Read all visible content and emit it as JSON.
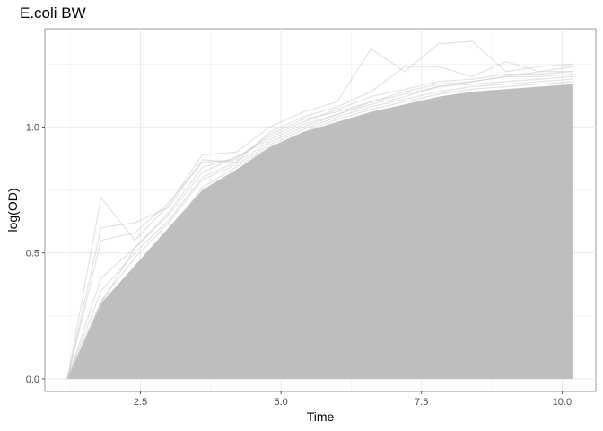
{
  "chart_data": {
    "type": "line",
    "title": "E.coli BW",
    "xlabel": "Time",
    "ylabel": "log(OD)",
    "xlim": [
      0.8,
      10.6
    ],
    "ylim": [
      -0.05,
      1.39
    ],
    "x_ticks": [
      2.5,
      5.0,
      7.5,
      10.0
    ],
    "x_tick_labels": [
      "2.5",
      "5.0",
      "7.5",
      "10.0"
    ],
    "y_ticks": [
      0.0,
      0.5,
      1.0
    ],
    "y_tick_labels": [
      "0.0",
      "0.5",
      "1.0"
    ],
    "grid": true,
    "legend": "none",
    "series_color": "#bebebe",
    "series_note": "many overlapping growth curves; values below are approximate envelope traces",
    "envelope": {
      "x": [
        1.2,
        1.8,
        2.4,
        3.0,
        3.6,
        4.2,
        4.8,
        5.4,
        6.0,
        6.6,
        7.2,
        7.8,
        8.4,
        9.0,
        9.6,
        10.2
      ],
      "upper": [
        0.0,
        0.3,
        0.45,
        0.6,
        0.75,
        0.83,
        0.92,
        0.98,
        1.02,
        1.06,
        1.09,
        1.12,
        1.14,
        1.15,
        1.16,
        1.17
      ],
      "lower": [
        0.0,
        0.0,
        0.0,
        0.0,
        0.0,
        0.0,
        0.0,
        0.0,
        0.0,
        0.0,
        0.0,
        0.0,
        0.0,
        0.0,
        0.0,
        0.0
      ]
    },
    "series": [
      {
        "x": [
          1.2,
          1.8,
          2.4,
          3.0,
          3.6,
          4.2,
          4.8,
          5.4,
          6.0,
          6.6,
          7.2,
          7.8,
          8.4,
          9.0,
          9.6,
          10.2
        ],
        "values": [
          0.0,
          0.72,
          0.55,
          0.69,
          0.89,
          0.9,
          1.0,
          1.06,
          1.1,
          1.31,
          1.22,
          1.33,
          1.34,
          1.22,
          1.24,
          1.25
        ]
      },
      {
        "x": [
          1.2,
          1.8,
          2.4,
          3.0,
          3.6,
          4.2,
          4.8,
          5.4,
          6.0,
          6.6,
          7.2,
          7.8,
          8.4,
          9.0,
          9.6,
          10.2
        ],
        "values": [
          0.0,
          0.6,
          0.62,
          0.68,
          0.87,
          0.86,
          0.98,
          1.04,
          1.08,
          1.14,
          1.24,
          1.24,
          1.2,
          1.26,
          1.22,
          1.22
        ]
      },
      {
        "x": [
          1.2,
          1.8,
          2.4,
          3.0,
          3.6,
          4.2,
          4.8,
          5.4,
          6.0,
          6.6,
          7.2,
          7.8,
          8.4,
          9.0,
          9.6,
          10.2
        ],
        "values": [
          0.0,
          0.4,
          0.52,
          0.65,
          0.82,
          0.88,
          0.96,
          1.02,
          1.07,
          1.12,
          1.15,
          1.18,
          1.19,
          1.21,
          1.21,
          1.22
        ]
      },
      {
        "x": [
          1.2,
          1.8,
          2.4,
          3.0,
          3.6,
          4.2,
          4.8,
          5.4,
          6.0,
          6.6,
          7.2,
          7.8,
          8.4,
          9.0,
          9.6,
          10.2
        ],
        "values": [
          0.0,
          0.35,
          0.5,
          0.63,
          0.8,
          0.86,
          0.94,
          1.0,
          1.05,
          1.09,
          1.12,
          1.16,
          1.17,
          1.18,
          1.19,
          1.2
        ]
      },
      {
        "x": [
          1.2,
          1.8,
          2.4,
          3.0,
          3.6,
          4.2,
          4.8,
          5.4,
          6.0,
          6.6,
          7.2,
          7.8,
          8.4,
          9.0,
          9.6,
          10.2
        ],
        "values": [
          0.0,
          0.31,
          0.48,
          0.62,
          0.79,
          0.85,
          0.93,
          0.99,
          1.04,
          1.08,
          1.11,
          1.14,
          1.16,
          1.17,
          1.18,
          1.19
        ]
      },
      {
        "x": [
          1.2,
          1.8,
          2.4,
          3.0,
          3.6,
          4.2,
          4.8,
          5.4,
          6.0,
          6.6,
          7.2,
          7.8,
          8.4,
          9.0,
          9.6,
          10.2
        ],
        "values": [
          0.0,
          0.55,
          0.58,
          0.7,
          0.86,
          0.87,
          0.97,
          1.03,
          1.06,
          1.1,
          1.13,
          1.16,
          1.18,
          1.2,
          1.22,
          1.24
        ]
      },
      {
        "x": [
          1.2,
          1.8,
          2.4,
          3.0,
          3.6,
          4.2,
          4.8,
          5.4,
          6.0,
          6.6,
          7.2,
          7.8,
          8.4,
          9.0,
          9.6,
          10.2
        ],
        "values": [
          0.0,
          0.2,
          0.42,
          0.58,
          0.76,
          0.84,
          0.92,
          0.98,
          1.03,
          1.07,
          1.1,
          1.13,
          1.15,
          1.16,
          1.17,
          1.18
        ]
      },
      {
        "x": [
          1.2,
          1.8,
          2.4,
          3.0,
          3.6,
          4.2,
          4.8,
          5.4,
          6.0,
          6.6,
          7.2,
          7.8,
          8.4,
          9.0,
          9.6,
          10.2
        ],
        "values": [
          0.0,
          0.3,
          0.52,
          0.66,
          0.84,
          0.88,
          0.95,
          1.01,
          1.05,
          1.1,
          1.14,
          1.17,
          1.18,
          1.2,
          1.2,
          1.21
        ]
      }
    ]
  }
}
